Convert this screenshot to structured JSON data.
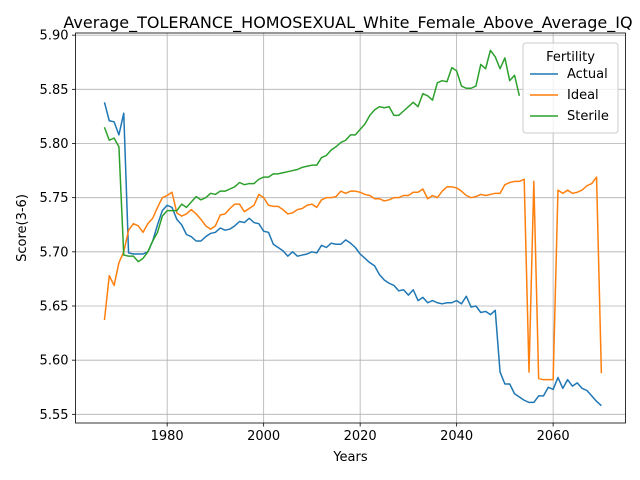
{
  "chart_data": {
    "type": "line",
    "title": "Average_TOLERANCE_HOMOSEXUAL_White_Female_Above_Average_IQ",
    "xlabel": "Years",
    "ylabel": "Score(3-6)",
    "xlim": [
      1961,
      2075
    ],
    "ylim": [
      5.542,
      5.902
    ],
    "xticks": [
      1980,
      2000,
      2020,
      2040,
      2060
    ],
    "yticks": [
      5.55,
      5.6,
      5.65,
      5.7,
      5.75,
      5.8,
      5.85,
      5.9
    ],
    "ytick_labels": [
      "5.55",
      "5.60",
      "5.65",
      "5.70",
      "5.75",
      "5.80",
      "5.85",
      "5.90"
    ],
    "grid": true,
    "legend": {
      "title": "Fertility",
      "position": "top-right"
    },
    "series": [
      {
        "name": "Actual",
        "color": "#1f77b4",
        "x": [
          1967,
          1968,
          1969,
          1970,
          1971,
          1972,
          1973,
          1974,
          1975,
          1976,
          1977,
          1978,
          1979,
          1980,
          1981,
          1982,
          1983,
          1984,
          1985,
          1986,
          1987,
          1988,
          1989,
          1990,
          1991,
          1992,
          1993,
          1994,
          1995,
          1996,
          1997,
          1998,
          1999,
          2000,
          2001,
          2002,
          2003,
          2004,
          2005,
          2006,
          2007,
          2008,
          2009,
          2010,
          2011,
          2012,
          2013,
          2014,
          2015,
          2016,
          2017,
          2018,
          2019,
          2020,
          2021,
          2022,
          2023,
          2024,
          2025,
          2026,
          2027,
          2028,
          2029,
          2030,
          2031,
          2032,
          2033,
          2034,
          2035,
          2036,
          2037,
          2038,
          2039,
          2040,
          2041,
          2042,
          2043,
          2044,
          2045,
          2046,
          2047,
          2048,
          2049,
          2050,
          2051,
          2052,
          2053,
          2054,
          2055,
          2056,
          2057,
          2058,
          2059,
          2060,
          2061,
          2062,
          2063,
          2064,
          2065,
          2066,
          2067,
          2068,
          2069,
          2070
        ],
        "values": [
          5.838,
          5.821,
          5.82,
          5.808,
          5.828,
          5.699,
          5.698,
          5.698,
          5.698,
          5.7,
          5.71,
          5.725,
          5.738,
          5.743,
          5.741,
          5.73,
          5.725,
          5.716,
          5.714,
          5.71,
          5.71,
          5.714,
          5.717,
          5.718,
          5.722,
          5.72,
          5.721,
          5.724,
          5.728,
          5.727,
          5.731,
          5.727,
          5.726,
          5.719,
          5.718,
          5.707,
          5.704,
          5.701,
          5.696,
          5.7,
          5.696,
          5.697,
          5.698,
          5.7,
          5.699,
          5.706,
          5.704,
          5.708,
          5.707,
          5.707,
          5.711,
          5.708,
          5.704,
          5.698,
          5.694,
          5.69,
          5.687,
          5.679,
          5.674,
          5.671,
          5.669,
          5.664,
          5.665,
          5.66,
          5.665,
          5.655,
          5.658,
          5.653,
          5.655,
          5.653,
          5.652,
          5.653,
          5.653,
          5.655,
          5.652,
          5.659,
          5.649,
          5.65,
          5.644,
          5.645,
          5.642,
          5.646,
          5.589,
          5.578,
          5.578,
          5.569,
          5.566,
          5.563,
          5.561,
          5.561,
          5.567,
          5.567,
          5.575,
          5.573,
          5.584,
          5.574,
          5.582,
          5.576,
          5.579,
          5.574,
          5.572,
          5.567,
          5.562,
          5.558
        ]
      },
      {
        "name": "Ideal",
        "color": "#ff7f0e",
        "x": [
          1967,
          1968,
          1969,
          1970,
          1971,
          1972,
          1973,
          1974,
          1975,
          1976,
          1977,
          1978,
          1979,
          1980,
          1981,
          1982,
          1983,
          1984,
          1985,
          1986,
          1987,
          1988,
          1989,
          1990,
          1991,
          1992,
          1993,
          1994,
          1995,
          1996,
          1997,
          1998,
          1999,
          2000,
          2001,
          2002,
          2003,
          2004,
          2005,
          2006,
          2007,
          2008,
          2009,
          2010,
          2011,
          2012,
          2013,
          2014,
          2015,
          2016,
          2017,
          2018,
          2019,
          2020,
          2021,
          2022,
          2023,
          2024,
          2025,
          2026,
          2027,
          2028,
          2029,
          2030,
          2031,
          2032,
          2033,
          2034,
          2035,
          2036,
          2037,
          2038,
          2039,
          2040,
          2041,
          2042,
          2043,
          2044,
          2045,
          2046,
          2047,
          2048,
          2049,
          2050,
          2051,
          2052,
          2053,
          2054,
          2055,
          2056,
          2057,
          2058,
          2059,
          2060,
          2061,
          2062,
          2063,
          2064,
          2065,
          2066,
          2067,
          2068,
          2069,
          2070
        ],
        "values": [
          5.637,
          5.678,
          5.669,
          5.69,
          5.7,
          5.72,
          5.726,
          5.724,
          5.718,
          5.726,
          5.731,
          5.741,
          5.75,
          5.752,
          5.755,
          5.736,
          5.733,
          5.735,
          5.739,
          5.735,
          5.73,
          5.724,
          5.721,
          5.724,
          5.734,
          5.735,
          5.74,
          5.744,
          5.744,
          5.737,
          5.74,
          5.743,
          5.753,
          5.75,
          5.743,
          5.742,
          5.742,
          5.739,
          5.735,
          5.736,
          5.739,
          5.74,
          5.743,
          5.744,
          5.741,
          5.748,
          5.75,
          5.75,
          5.751,
          5.756,
          5.754,
          5.756,
          5.756,
          5.755,
          5.753,
          5.752,
          5.749,
          5.749,
          5.747,
          5.748,
          5.75,
          5.75,
          5.752,
          5.752,
          5.755,
          5.755,
          5.758,
          5.749,
          5.752,
          5.75,
          5.756,
          5.76,
          5.76,
          5.759,
          5.756,
          5.752,
          5.75,
          5.751,
          5.753,
          5.752,
          5.753,
          5.754,
          5.754,
          5.762,
          5.764,
          5.765,
          5.765,
          5.767,
          5.589,
          5.765,
          5.583,
          5.582,
          5.582,
          5.582,
          5.757,
          5.754,
          5.757,
          5.754,
          5.755,
          5.757,
          5.761,
          5.763,
          5.769,
          5.588
        ]
      },
      {
        "name": "Sterile",
        "color": "#2ca02c",
        "x": [
          1967,
          1968,
          1969,
          1970,
          1971,
          1972,
          1973,
          1974,
          1975,
          1976,
          1977,
          1978,
          1979,
          1980,
          1981,
          1982,
          1983,
          1984,
          1985,
          1986,
          1987,
          1988,
          1989,
          1990,
          1991,
          1992,
          1993,
          1994,
          1995,
          1996,
          1997,
          1998,
          1999,
          2000,
          2001,
          2002,
          2003,
          2004,
          2005,
          2006,
          2007,
          2008,
          2009,
          2010,
          2011,
          2012,
          2013,
          2014,
          2015,
          2016,
          2017,
          2018,
          2019,
          2020,
          2021,
          2022,
          2023,
          2024,
          2025,
          2026,
          2027,
          2028,
          2029,
          2030,
          2031,
          2032,
          2033,
          2034,
          2035,
          2036,
          2037,
          2038,
          2039,
          2040,
          2041,
          2042,
          2043,
          2044,
          2045,
          2046,
          2047,
          2048,
          2049,
          2050,
          2051,
          2052,
          2053
        ],
        "values": [
          5.815,
          5.803,
          5.805,
          5.797,
          5.697,
          5.696,
          5.696,
          5.691,
          5.694,
          5.7,
          5.71,
          5.718,
          5.733,
          5.738,
          5.738,
          5.738,
          5.744,
          5.741,
          5.746,
          5.751,
          5.748,
          5.75,
          5.754,
          5.753,
          5.756,
          5.756,
          5.758,
          5.76,
          5.764,
          5.762,
          5.763,
          5.763,
          5.767,
          5.769,
          5.769,
          5.772,
          5.772,
          5.773,
          5.774,
          5.775,
          5.776,
          5.778,
          5.779,
          5.78,
          5.78,
          5.787,
          5.789,
          5.794,
          5.797,
          5.801,
          5.803,
          5.808,
          5.808,
          5.813,
          5.818,
          5.826,
          5.831,
          5.834,
          5.833,
          5.834,
          5.826,
          5.826,
          5.83,
          5.834,
          5.838,
          5.834,
          5.846,
          5.844,
          5.84,
          5.856,
          5.858,
          5.857,
          5.87,
          5.867,
          5.853,
          5.851,
          5.851,
          5.853,
          5.873,
          5.869,
          5.886,
          5.88,
          5.869,
          5.879,
          5.858,
          5.863,
          5.844
        ]
      }
    ]
  }
}
